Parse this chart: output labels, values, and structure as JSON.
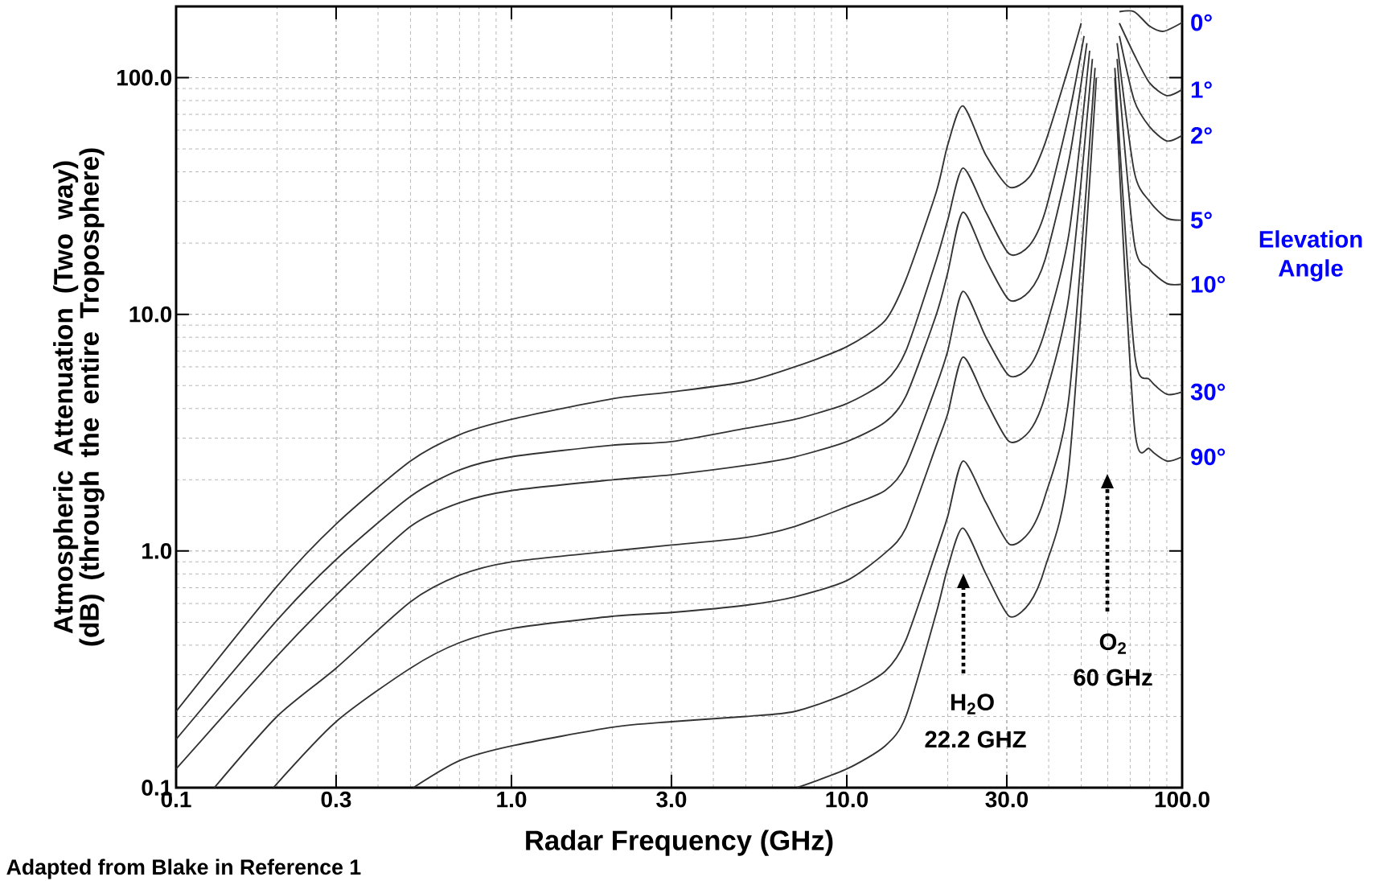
{
  "chart_data": {
    "type": "line",
    "xlabel": "Radar Frequency (GHz)",
    "ylabel": "Atmospheric Attenuation (Two way) (dB) (through the entire Troposphere)",
    "legend_title": "Elevation Angle",
    "log": "xy",
    "grid": true,
    "legend": false,
    "marker": "none",
    "line_style": "solid",
    "xlim": [
      0.1,
      100
    ],
    "ylim": [
      0.1,
      200
    ],
    "xticks": [
      {
        "value": 0.1,
        "label": "0.1"
      },
      {
        "value": 0.3,
        "label": "0.3"
      },
      {
        "value": 1,
        "label": "1.0"
      },
      {
        "value": 3,
        "label": "3.0"
      },
      {
        "value": 10,
        "label": "10.0"
      },
      {
        "value": 30,
        "label": "30.0"
      },
      {
        "value": 100,
        "label": "100.0"
      }
    ],
    "yticks": [
      {
        "value": 0.1,
        "label": "0.1"
      },
      {
        "value": 1,
        "label": "1.0"
      },
      {
        "value": 10,
        "label": "10.0"
      },
      {
        "value": 100,
        "label": "100.0"
      }
    ],
    "series": [
      {
        "name": "0°",
        "color": "#333333",
        "x": [
          0.1,
          0.2,
          0.3,
          0.5,
          0.7,
          1,
          2,
          3,
          5,
          7,
          10,
          13,
          15,
          18.5,
          20,
          22.2,
          26,
          30.5,
          35,
          39,
          46,
          50,
          58,
          65,
          72,
          80,
          88,
          100
        ],
        "values": [
          0.21,
          0.71,
          1.3,
          2.4,
          3.1,
          3.6,
          4.4,
          4.7,
          5.2,
          6.0,
          7.3,
          9.4,
          14,
          33,
          52,
          76,
          47,
          34.5,
          38,
          52.7,
          112,
          170,
          null,
          190,
          190,
          165,
          157,
          171
        ]
      },
      {
        "name": "1°",
        "color": "#333333",
        "x": [
          0.1,
          0.2,
          0.3,
          0.5,
          0.7,
          1,
          2,
          3,
          5,
          7,
          10,
          13,
          15,
          18.5,
          20,
          22.2,
          26,
          30.5,
          35,
          39,
          46,
          51,
          58,
          65,
          72,
          80,
          90,
          100
        ],
        "values": [
          0.16,
          0.51,
          0.92,
          1.7,
          2.2,
          2.5,
          2.8,
          2.9,
          3.3,
          3.6,
          4.2,
          5.2,
          7.0,
          17,
          25,
          41.5,
          27,
          18,
          19.5,
          27,
          70,
          150,
          null,
          170,
          125,
          95,
          84,
          89
        ]
      },
      {
        "name": "2°",
        "color": "#333333",
        "x": [
          0.1,
          0.2,
          0.3,
          0.5,
          0.7,
          1,
          2,
          3,
          5,
          7,
          10,
          13,
          15,
          18.5,
          20,
          22.2,
          26,
          30.5,
          35,
          39,
          46,
          52,
          58,
          65,
          72,
          80,
          90,
          100
        ],
        "values": [
          0.12,
          0.36,
          0.65,
          1.27,
          1.6,
          1.8,
          2.0,
          2.1,
          2.3,
          2.5,
          2.9,
          3.5,
          4.5,
          10,
          15,
          27,
          17,
          11.5,
          12.5,
          17,
          45,
          140,
          null,
          150,
          80,
          62,
          54,
          57
        ]
      },
      {
        "name": "5°",
        "color": "#333333",
        "x": [
          0.13,
          0.2,
          0.3,
          0.5,
          0.7,
          1,
          2,
          3,
          5,
          7,
          10,
          13,
          15,
          18.5,
          20,
          22.2,
          26,
          30.5,
          35,
          39,
          46,
          53,
          58,
          64,
          72,
          80,
          90,
          100
        ],
        "values": [
          0.1,
          0.2,
          0.32,
          0.61,
          0.79,
          0.9,
          1.0,
          1.06,
          1.14,
          1.27,
          1.54,
          1.8,
          2.3,
          5,
          7,
          12.5,
          8,
          5.5,
          6,
          8.5,
          22,
          130,
          null,
          140,
          40,
          30,
          25.5,
          25
        ]
      },
      {
        "name": "10°",
        "color": "#333333",
        "x": [
          0.195,
          0.3,
          0.5,
          0.7,
          1,
          2,
          3,
          5,
          7,
          10,
          13,
          15,
          18.5,
          20,
          22.2,
          26,
          30.5,
          35,
          39,
          46,
          54,
          58,
          64,
          72,
          80,
          90,
          100
        ],
        "values": [
          0.1,
          0.19,
          0.32,
          0.41,
          0.47,
          0.53,
          0.55,
          0.59,
          0.64,
          0.75,
          0.98,
          1.25,
          2.8,
          3.8,
          6.6,
          4.3,
          2.9,
          3.2,
          4.5,
          12,
          120,
          null,
          120,
          20,
          15.5,
          13.5,
          13.4
        ]
      },
      {
        "name": "30°",
        "color": "#333333",
        "x": [
          0.51,
          0.7,
          1,
          2,
          3,
          5,
          7,
          10,
          13,
          15,
          18.5,
          20,
          22.2,
          26,
          30.5,
          35,
          39,
          46,
          55,
          58,
          63,
          72,
          80,
          90,
          100
        ],
        "values": [
          0.1,
          0.13,
          0.15,
          0.18,
          0.19,
          0.2,
          0.21,
          0.25,
          0.31,
          0.42,
          1.0,
          1.4,
          2.4,
          1.6,
          1.07,
          1.2,
          1.7,
          4.5,
          110,
          null,
          110,
          7,
          5.3,
          4.6,
          4.7
        ]
      },
      {
        "name": "90°",
        "color": "#333333",
        "x": [
          7.1,
          10,
          13,
          15,
          18.5,
          20,
          22.2,
          26,
          30.5,
          35,
          39,
          46,
          55.5,
          58,
          63,
          72,
          80,
          90,
          100
        ],
        "values": [
          0.1,
          0.12,
          0.15,
          0.2,
          0.55,
          0.85,
          1.25,
          0.8,
          0.53,
          0.6,
          0.85,
          2.3,
          100,
          null,
          100,
          3.4,
          2.7,
          2.4,
          2.5
        ]
      }
    ],
    "annotations": [
      "H$_{2}$O",
      "22.2 GHZ",
      "O$_{2}$",
      "60 GHz",
      "Adapted from Blake in Reference 1"
    ]
  }
}
